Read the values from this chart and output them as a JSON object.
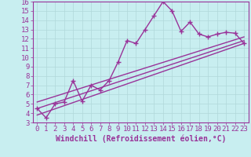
{
  "xlabel": "Windchill (Refroidissement éolien,°C)",
  "background_color": "#c8eef0",
  "line_color": "#993399",
  "grid_color": "#b0d8da",
  "xlim_min": -0.5,
  "xlim_max": 23.5,
  "ylim_min": 3,
  "ylim_max": 16,
  "x_data": [
    0,
    1,
    2,
    3,
    4,
    5,
    6,
    7,
    8,
    9,
    10,
    11,
    12,
    13,
    14,
    15,
    16,
    17,
    18,
    19,
    20,
    21,
    22,
    23
  ],
  "y_data": [
    4.5,
    3.5,
    5.0,
    5.2,
    7.5,
    5.3,
    7.0,
    6.5,
    7.5,
    9.5,
    11.8,
    11.5,
    13.0,
    14.5,
    16.0,
    15.0,
    12.8,
    13.8,
    12.5,
    12.2,
    12.5,
    12.7,
    12.6,
    11.5
  ],
  "reg_line1": {
    "x": [
      0,
      23
    ],
    "y": [
      3.8,
      11.5
    ]
  },
  "reg_line2": {
    "x": [
      0,
      23
    ],
    "y": [
      5.2,
      12.2
    ]
  },
  "reg_line3": {
    "x": [
      0,
      23
    ],
    "y": [
      4.5,
      11.8
    ]
  },
  "x_ticks": [
    0,
    1,
    2,
    3,
    4,
    5,
    6,
    7,
    8,
    9,
    10,
    11,
    12,
    13,
    14,
    15,
    16,
    17,
    18,
    19,
    20,
    21,
    22,
    23
  ],
  "y_ticks": [
    3,
    4,
    5,
    6,
    7,
    8,
    9,
    10,
    11,
    12,
    13,
    14,
    15,
    16
  ],
  "tick_fontsize": 6.5,
  "xlabel_fontsize": 7,
  "linewidth": 1.0,
  "markersize": 4
}
